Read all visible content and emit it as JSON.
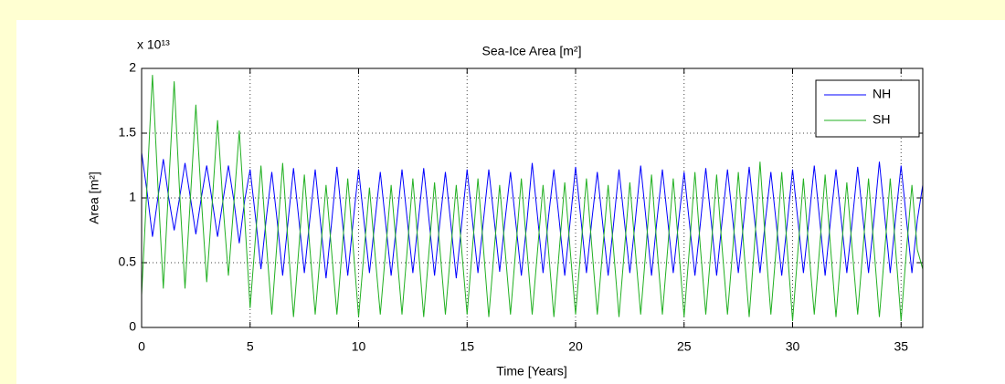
{
  "chart_data": {
    "type": "line",
    "title": "Sea-Ice Area [m²]",
    "x_label": "Time [Years]",
    "y_label": "Area [m²]",
    "y_multiplier": "x 10¹³",
    "xlim": [
      0,
      36
    ],
    "ylim": [
      0,
      2
    ],
    "xticks": [
      0,
      5,
      10,
      15,
      20,
      25,
      30,
      35
    ],
    "yticks": [
      0,
      0.5,
      1,
      1.5,
      2
    ],
    "grid": true,
    "legend": "top-right",
    "x": [
      0,
      0.25,
      0.5,
      0.75,
      1,
      1.25,
      1.5,
      1.75,
      2,
      2.25,
      2.5,
      2.75,
      3,
      3.25,
      3.5,
      3.75,
      4,
      4.25,
      4.5,
      4.75,
      5,
      5.25,
      5.5,
      5.75,
      6,
      6.25,
      6.5,
      6.75,
      7,
      7.25,
      7.5,
      7.75,
      8,
      8.25,
      8.5,
      8.75,
      9,
      9.25,
      9.5,
      9.75,
      10,
      10.25,
      10.5,
      10.75,
      11,
      11.25,
      11.5,
      11.75,
      12,
      12.25,
      12.5,
      12.75,
      13,
      13.25,
      13.5,
      13.75,
      14,
      14.25,
      14.5,
      14.75,
      15,
      15.25,
      15.5,
      15.75,
      16,
      16.25,
      16.5,
      16.75,
      17,
      17.25,
      17.5,
      17.75,
      18,
      18.25,
      18.5,
      18.75,
      19,
      19.25,
      19.5,
      19.75,
      20,
      20.25,
      20.5,
      20.75,
      21,
      21.25,
      21.5,
      21.75,
      22,
      22.25,
      22.5,
      22.75,
      23,
      23.25,
      23.5,
      23.75,
      24,
      24.25,
      24.5,
      24.75,
      25,
      25.25,
      25.5,
      25.75,
      26,
      26.25,
      26.5,
      26.75,
      27,
      27.25,
      27.5,
      27.75,
      28,
      28.25,
      28.5,
      28.75,
      29,
      29.25,
      29.5,
      29.75,
      30,
      30.25,
      30.5,
      30.75,
      31,
      31.25,
      31.5,
      31.75,
      32,
      32.25,
      32.5,
      32.75,
      33,
      33.25,
      33.5,
      33.75,
      34,
      34.25,
      34.5,
      34.75,
      35,
      35.25,
      35.5,
      35.75,
      36
    ],
    "series": [
      {
        "name": "NH",
        "color": "#0000ff",
        "values": [
          1.35,
          1.05,
          0.7,
          1.0,
          1.3,
          1.0,
          0.75,
          1.0,
          1.27,
          1.0,
          0.72,
          1.0,
          1.25,
          0.98,
          0.7,
          0.98,
          1.25,
          0.98,
          0.65,
          0.98,
          1.22,
          0.85,
          0.45,
          0.85,
          1.2,
          0.82,
          0.4,
          0.82,
          1.23,
          0.83,
          0.42,
          0.83,
          1.22,
          0.8,
          0.38,
          0.8,
          1.24,
          0.82,
          0.4,
          0.82,
          1.22,
          0.82,
          0.42,
          0.82,
          1.2,
          0.8,
          0.4,
          0.8,
          1.22,
          0.82,
          0.42,
          0.82,
          1.23,
          0.82,
          0.4,
          0.82,
          1.2,
          0.8,
          0.38,
          0.8,
          1.22,
          0.82,
          0.42,
          0.82,
          1.22,
          0.83,
          0.43,
          0.83,
          1.2,
          0.8,
          0.4,
          0.8,
          1.27,
          0.85,
          0.42,
          0.85,
          1.22,
          0.82,
          0.4,
          0.82,
          1.24,
          0.83,
          0.42,
          0.83,
          1.2,
          0.8,
          0.4,
          0.8,
          1.22,
          0.82,
          0.42,
          0.82,
          1.25,
          0.83,
          0.4,
          0.83,
          1.22,
          0.82,
          0.42,
          0.82,
          1.2,
          0.8,
          0.4,
          0.8,
          1.23,
          0.82,
          0.4,
          0.82,
          1.22,
          0.82,
          0.42,
          0.82,
          1.24,
          0.83,
          0.42,
          0.83,
          1.2,
          0.8,
          0.4,
          0.8,
          1.22,
          0.82,
          0.42,
          0.82,
          1.25,
          0.83,
          0.4,
          0.83,
          1.22,
          0.82,
          0.42,
          0.82,
          1.24,
          0.83,
          0.42,
          0.83,
          1.28,
          0.85,
          0.42,
          0.85,
          1.25,
          0.83,
          0.42,
          0.83,
          1.1
        ]
      },
      {
        "name": "SH",
        "color": "#22b022",
        "values": [
          0.25,
          1.1,
          1.95,
          1.1,
          0.3,
          1.1,
          1.9,
          1.05,
          0.3,
          1.0,
          1.72,
          1.0,
          0.35,
          0.95,
          1.6,
          0.95,
          0.4,
          0.95,
          1.52,
          0.85,
          0.15,
          0.7,
          1.25,
          0.65,
          0.1,
          0.68,
          1.27,
          0.65,
          0.08,
          0.62,
          1.18,
          0.62,
          0.1,
          0.6,
          1.1,
          0.6,
          0.1,
          0.62,
          1.15,
          0.62,
          0.08,
          0.58,
          1.08,
          0.58,
          0.1,
          0.6,
          1.1,
          0.6,
          0.1,
          0.62,
          1.15,
          0.62,
          0.08,
          0.6,
          1.12,
          0.6,
          0.1,
          0.6,
          1.1,
          0.6,
          0.1,
          0.62,
          1.15,
          0.62,
          0.08,
          0.6,
          1.1,
          0.6,
          0.1,
          0.62,
          1.15,
          0.62,
          0.1,
          0.6,
          1.1,
          0.6,
          0.08,
          0.6,
          1.12,
          0.6,
          0.1,
          0.62,
          1.15,
          0.62,
          0.1,
          0.6,
          1.1,
          0.6,
          0.08,
          0.6,
          1.12,
          0.6,
          0.1,
          0.62,
          1.18,
          0.62,
          0.1,
          0.62,
          1.15,
          0.62,
          0.08,
          0.62,
          1.2,
          0.62,
          0.1,
          0.62,
          1.18,
          0.62,
          0.1,
          0.62,
          1.2,
          0.62,
          0.08,
          0.65,
          1.28,
          0.65,
          0.1,
          0.62,
          1.2,
          0.62,
          0.05,
          0.6,
          1.15,
          0.6,
          0.1,
          0.62,
          1.18,
          0.62,
          0.08,
          0.6,
          1.12,
          0.6,
          0.1,
          0.62,
          1.15,
          0.62,
          0.08,
          0.6,
          1.15,
          0.6,
          0.05,
          0.6,
          1.1,
          0.6,
          0.45
        ]
      }
    ]
  }
}
